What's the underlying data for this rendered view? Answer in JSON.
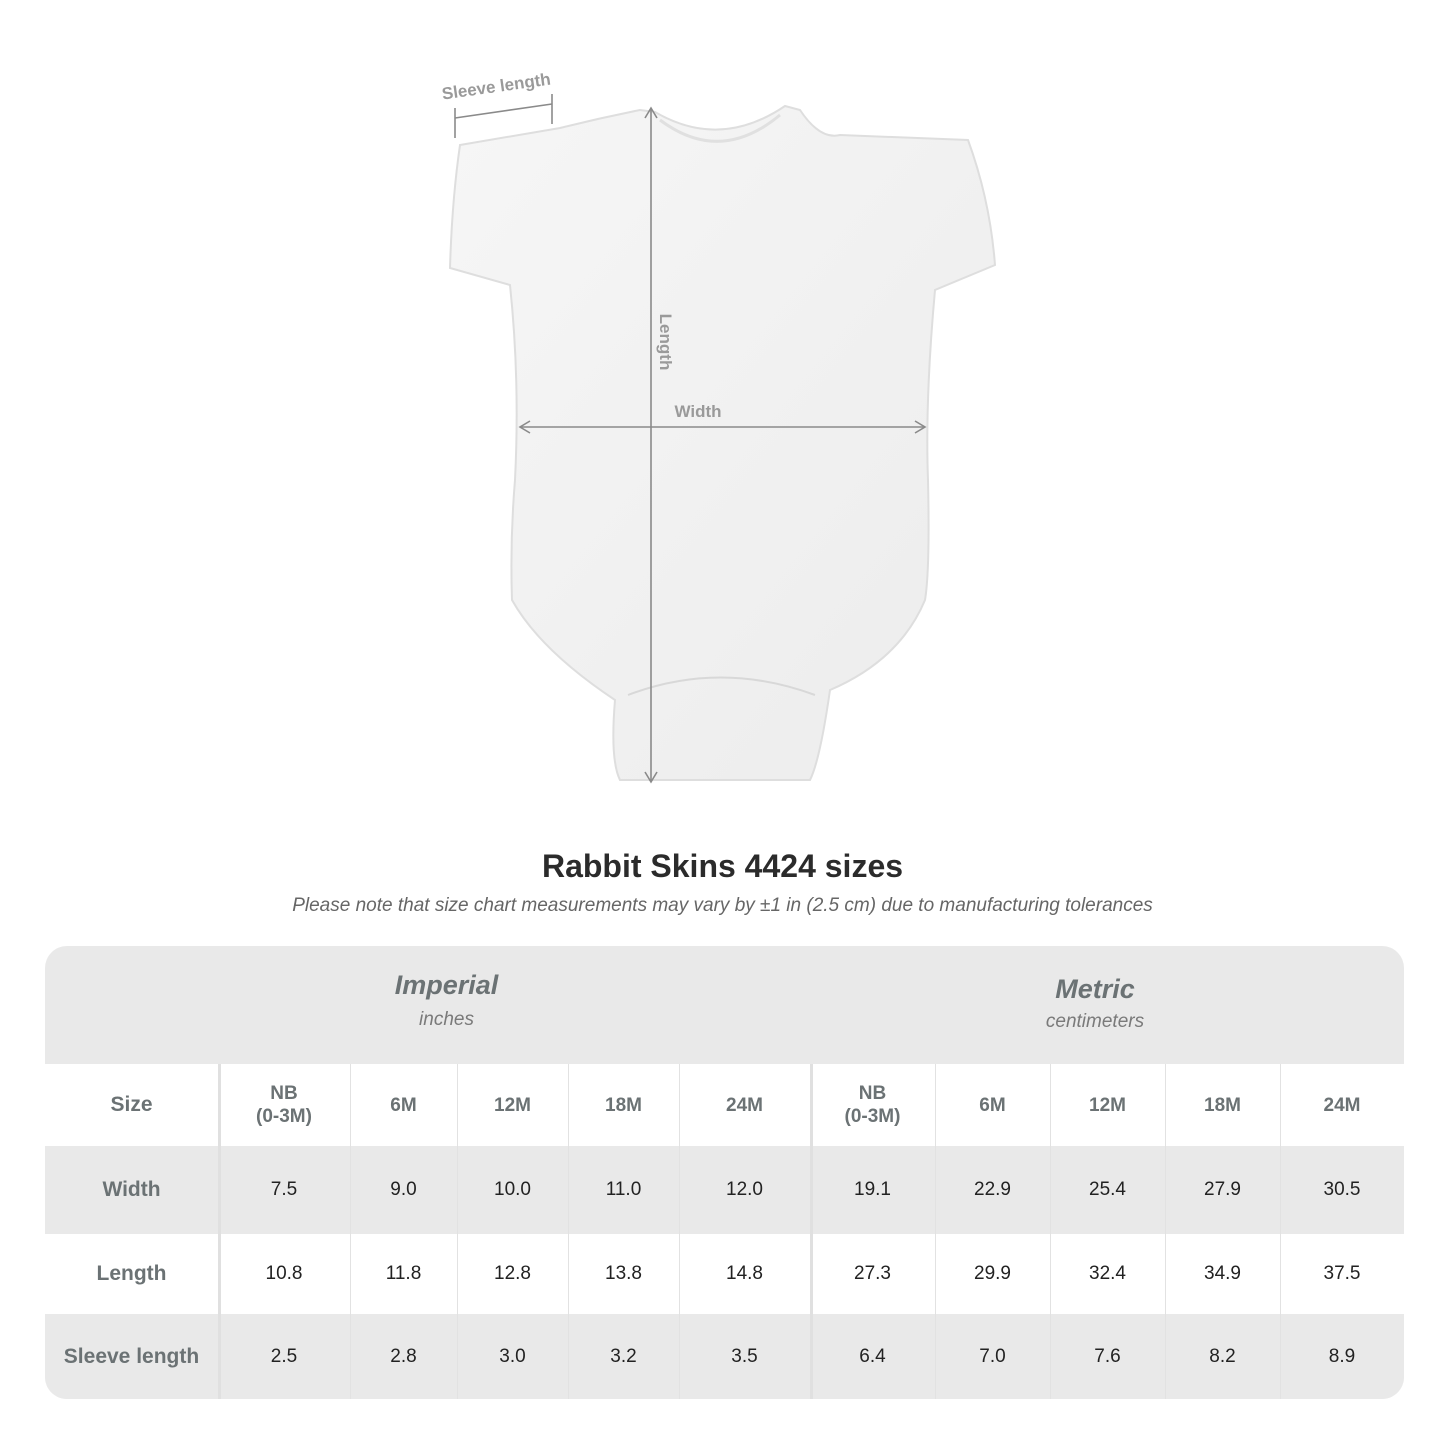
{
  "diagram": {
    "labels": {
      "sleeve": "Sleeve length",
      "length": "Length",
      "width": "Width"
    }
  },
  "title": "Rabbit Skins 4424 sizes",
  "note": "Please note that size chart measurements may vary by ±1 in (2.5 cm) due to manufacturing tolerances",
  "table": {
    "imperial": {
      "name": "Imperial",
      "unit": "inches"
    },
    "metric": {
      "name": "Metric",
      "unit": "centimeters"
    },
    "size_label": "Size",
    "sizes": [
      "NB\n(0-3M)",
      "6M",
      "12M",
      "18M",
      "24M",
      "NB\n(0-3M)",
      "6M",
      "12M",
      "18M",
      "24M"
    ],
    "rows": [
      {
        "label": "Width",
        "values": [
          "7.5",
          "9.0",
          "10.0",
          "11.0",
          "12.0",
          "19.1",
          "22.9",
          "25.4",
          "27.9",
          "30.5"
        ]
      },
      {
        "label": "Length",
        "values": [
          "10.8",
          "11.8",
          "12.8",
          "13.8",
          "14.8",
          "27.3",
          "29.9",
          "32.4",
          "34.9",
          "37.5"
        ]
      },
      {
        "label": "Sleeve length",
        "values": [
          "2.5",
          "2.8",
          "3.0",
          "3.2",
          "3.5",
          "6.4",
          "7.0",
          "7.6",
          "8.2",
          "8.9"
        ]
      }
    ]
  },
  "colors": {
    "header_bg": "#e9e9e9",
    "label_text": "#6b7274",
    "line": "#8a8a8a"
  }
}
